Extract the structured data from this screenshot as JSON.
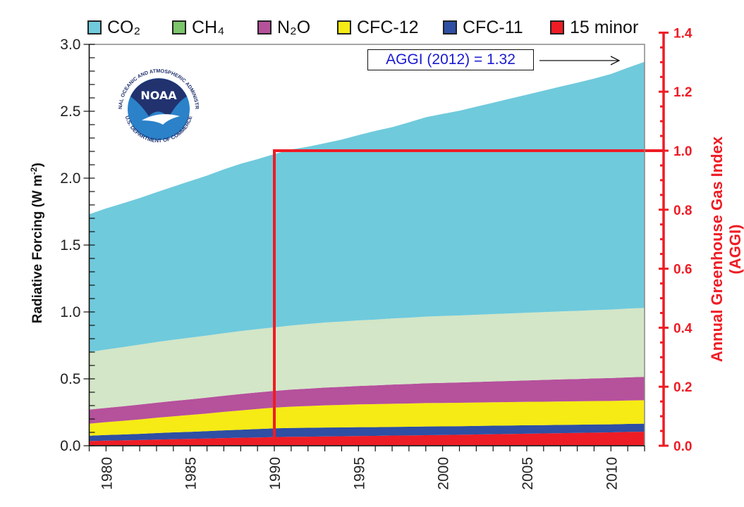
{
  "chart_data": {
    "type": "area",
    "stacked": true,
    "title": "",
    "xlabel": "",
    "ylabel": "Radiative Forcing (W m-2)",
    "ylabel_parts": {
      "main": "Radiative Forcing (W m",
      "sup": "-2",
      "end": ")"
    },
    "y2label": "Annual Greenhouse Gas Index (AGGI)",
    "xlim": [
      1979,
      2012
    ],
    "ylim": [
      0,
      3.0
    ],
    "y2lim": [
      0,
      1.4
    ],
    "x_ticks": [
      1980,
      1985,
      1990,
      1995,
      2000,
      2005,
      2010
    ],
    "y_ticks": [
      "0.0",
      "0.5",
      "1.0",
      "1.5",
      "2.0",
      "2.5",
      "3.0"
    ],
    "y2_ticks": [
      "0.0",
      "0.2",
      "0.4",
      "0.6",
      "0.8",
      "1.0",
      "1.2",
      "1.4"
    ],
    "grid": false,
    "legend_position": "top",
    "x": [
      1979,
      1980,
      1981,
      1982,
      1983,
      1984,
      1985,
      1986,
      1987,
      1988,
      1989,
      1990,
      1991,
      1992,
      1993,
      1994,
      1995,
      1996,
      1997,
      1998,
      1999,
      2000,
      2001,
      2002,
      2003,
      2004,
      2005,
      2006,
      2007,
      2008,
      2009,
      2010,
      2011,
      2012
    ],
    "series": [
      {
        "name": "15 minor",
        "color": "#ee1c25",
        "values": [
          0.035,
          0.038,
          0.04,
          0.043,
          0.046,
          0.049,
          0.051,
          0.054,
          0.057,
          0.06,
          0.062,
          0.065,
          0.067,
          0.068,
          0.07,
          0.071,
          0.073,
          0.074,
          0.076,
          0.077,
          0.079,
          0.08,
          0.082,
          0.084,
          0.086,
          0.088,
          0.09,
          0.092,
          0.094,
          0.096,
          0.098,
          0.1,
          0.103,
          0.105
        ]
      },
      {
        "name": "CFC-11",
        "color": "#2e4fa3",
        "values": [
          0.04,
          0.042,
          0.044,
          0.046,
          0.049,
          0.051,
          0.053,
          0.055,
          0.058,
          0.06,
          0.063,
          0.065,
          0.066,
          0.066,
          0.066,
          0.066,
          0.066,
          0.065,
          0.065,
          0.065,
          0.065,
          0.065,
          0.064,
          0.064,
          0.064,
          0.063,
          0.063,
          0.062,
          0.062,
          0.061,
          0.061,
          0.06,
          0.06,
          0.06
        ]
      },
      {
        "name": "CFC-12",
        "color": "#f6eb14",
        "values": [
          0.09,
          0.096,
          0.102,
          0.108,
          0.114,
          0.12,
          0.126,
          0.132,
          0.138,
          0.144,
          0.15,
          0.155,
          0.159,
          0.163,
          0.166,
          0.168,
          0.17,
          0.172,
          0.173,
          0.174,
          0.175,
          0.175,
          0.175,
          0.175,
          0.175,
          0.175,
          0.175,
          0.175,
          0.175,
          0.175,
          0.175,
          0.175,
          0.175,
          0.175
        ]
      },
      {
        "name": "N2O",
        "color": "#b6519c",
        "values": [
          0.105,
          0.107,
          0.109,
          0.111,
          0.113,
          0.115,
          0.117,
          0.119,
          0.121,
          0.123,
          0.124,
          0.125,
          0.128,
          0.13,
          0.133,
          0.135,
          0.138,
          0.14,
          0.143,
          0.145,
          0.148,
          0.15,
          0.152,
          0.154,
          0.156,
          0.158,
          0.16,
          0.163,
          0.165,
          0.167,
          0.169,
          0.171,
          0.173,
          0.175
        ]
      },
      {
        "name": "CH4",
        "color": "#d3e6c7",
        "legend_color": "#7cc56b",
        "values": [
          0.43,
          0.436,
          0.442,
          0.448,
          0.453,
          0.457,
          0.461,
          0.464,
          0.467,
          0.47,
          0.473,
          0.475,
          0.479,
          0.483,
          0.486,
          0.488,
          0.49,
          0.492,
          0.494,
          0.496,
          0.498,
          0.5,
          0.501,
          0.502,
          0.503,
          0.505,
          0.506,
          0.507,
          0.508,
          0.509,
          0.511,
          0.512,
          0.514,
          0.515
        ]
      },
      {
        "name": "CO2",
        "color": "#6fcadc",
        "values": [
          1.03,
          1.055,
          1.075,
          1.095,
          1.12,
          1.145,
          1.17,
          1.195,
          1.225,
          1.25,
          1.27,
          1.295,
          1.315,
          1.325,
          1.34,
          1.36,
          1.385,
          1.41,
          1.43,
          1.46,
          1.49,
          1.51,
          1.53,
          1.555,
          1.58,
          1.605,
          1.63,
          1.655,
          1.68,
          1.705,
          1.73,
          1.76,
          1.8,
          1.84
        ]
      }
    ],
    "aggi_reference": {
      "year": 1990,
      "aggi": 1.0,
      "color": "#ee1c25"
    },
    "annotation": {
      "text": "AGGI (2012) = 1.32",
      "year": 2012,
      "aggi": 1.32
    }
  },
  "legend": [
    {
      "label": "CO₂",
      "color": "#6fcadc"
    },
    {
      "label": "CH₄",
      "color": "#7cc56b"
    },
    {
      "label": "N₂O",
      "color": "#b6519c"
    },
    {
      "label": "CFC-12",
      "color": "#f6eb14"
    },
    {
      "label": "CFC-11",
      "color": "#2e4fa3"
    },
    {
      "label": "15 minor",
      "color": "#ee1c25"
    }
  ],
  "logo": {
    "name": "NOAA",
    "ring_top": "NATIONAL OCEANIC AND ATMOSPHERIC ADMINISTRATION",
    "ring_bottom": "U.S. DEPARTMENT OF COMMERCE"
  }
}
